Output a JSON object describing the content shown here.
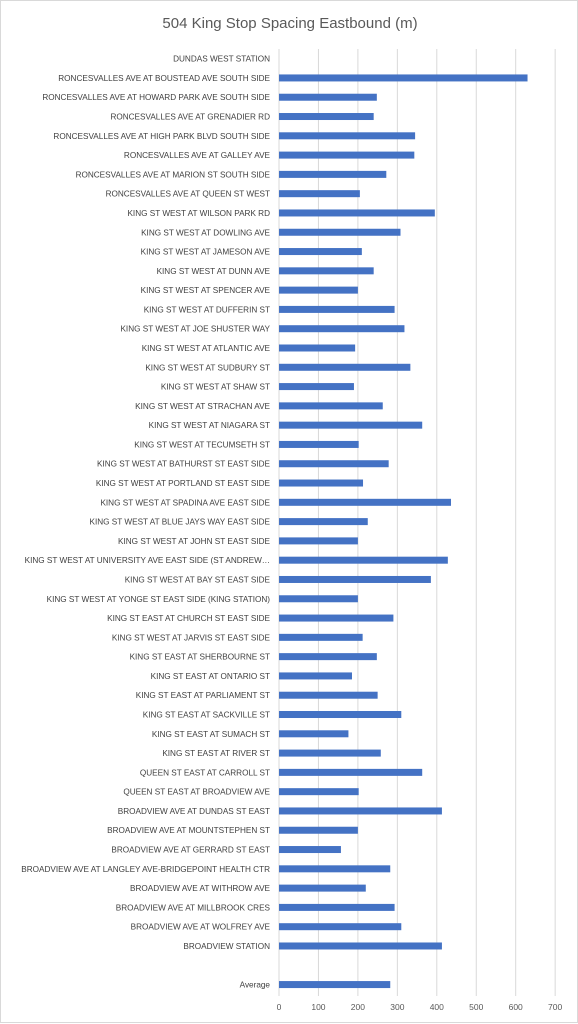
{
  "chart_data": {
    "type": "bar",
    "orientation": "horizontal",
    "title": "504 King Stop Spacing Eastbound (m)",
    "xlim": [
      0,
      700
    ],
    "xticks": [
      0,
      100,
      200,
      300,
      400,
      500,
      600,
      700
    ],
    "grid": true,
    "color": "#4472c4",
    "categories": [
      "DUNDAS WEST STATION",
      "RONCESVALLES AVE AT BOUSTEAD AVE SOUTH SIDE",
      "RONCESVALLES AVE AT HOWARD PARK AVE SOUTH SIDE",
      "RONCESVALLES AVE AT GRENADIER RD",
      "RONCESVALLES AVE AT HIGH PARK BLVD SOUTH SIDE",
      "RONCESVALLES AVE AT GALLEY AVE",
      "RONCESVALLES AVE AT MARION ST SOUTH SIDE",
      "RONCESVALLES AVE AT QUEEN ST WEST",
      "KING ST WEST AT WILSON PARK RD",
      "KING ST WEST AT DOWLING AVE",
      "KING ST WEST AT JAMESON AVE",
      "KING ST WEST AT DUNN AVE",
      "KING ST WEST AT SPENCER AVE",
      "KING ST WEST AT DUFFERIN ST",
      "KING ST WEST AT JOE SHUSTER WAY",
      "KING ST WEST AT ATLANTIC AVE",
      "KING ST WEST AT SUDBURY ST",
      "KING ST WEST AT SHAW ST",
      "KING ST WEST AT STRACHAN AVE",
      "KING ST WEST AT NIAGARA ST",
      "KING ST WEST AT TECUMSETH ST",
      "KING ST WEST AT BATHURST ST EAST SIDE",
      "KING ST WEST AT PORTLAND ST EAST SIDE",
      "KING ST WEST AT SPADINA AVE EAST SIDE",
      "KING ST WEST AT BLUE JAYS WAY EAST SIDE",
      "KING ST WEST AT JOHN ST EAST SIDE",
      "KING ST WEST AT UNIVERSITY AVE EAST SIDE (ST ANDREW…",
      "KING ST WEST AT BAY ST EAST SIDE",
      "KING ST WEST AT YONGE ST EAST SIDE (KING STATION)",
      "KING ST EAST AT CHURCH ST EAST SIDE",
      "KING ST WEST AT JARVIS ST EAST SIDE",
      "KING ST EAST AT SHERBOURNE ST",
      "KING ST EAST AT ONTARIO ST",
      "KING ST EAST AT PARLIAMENT ST",
      "KING ST EAST AT SACKVILLE ST",
      "KING ST EAST AT SUMACH ST",
      "KING ST EAST AT RIVER ST",
      "QUEEN ST EAST AT CARROLL ST",
      "QUEEN ST EAST AT BROADVIEW AVE",
      "BROADVIEW AVE AT DUNDAS ST EAST",
      "BROADVIEW AVE AT MOUNTSTEPHEN ST",
      "BROADVIEW AVE AT GERRARD ST EAST",
      "BROADVIEW AVE AT LANGLEY AVE-BRIDGEPOINT HEALTH CTR",
      "BROADVIEW AVE AT WITHROW AVE",
      "BROADVIEW AVE AT MILLBROOK CRES",
      "BROADVIEW AVE AT WOLFREY AVE",
      "BROADVIEW STATION",
      "",
      "Average"
    ],
    "values": [
      0,
      630,
      248,
      240,
      345,
      343,
      272,
      205,
      395,
      308,
      210,
      240,
      200,
      293,
      318,
      193,
      333,
      190,
      263,
      363,
      202,
      278,
      213,
      436,
      225,
      200,
      428,
      385,
      200,
      290,
      212,
      248,
      185,
      250,
      310,
      176,
      258,
      363,
      202,
      413,
      200,
      157,
      282,
      220,
      293,
      310,
      413,
      null,
      282
    ]
  }
}
